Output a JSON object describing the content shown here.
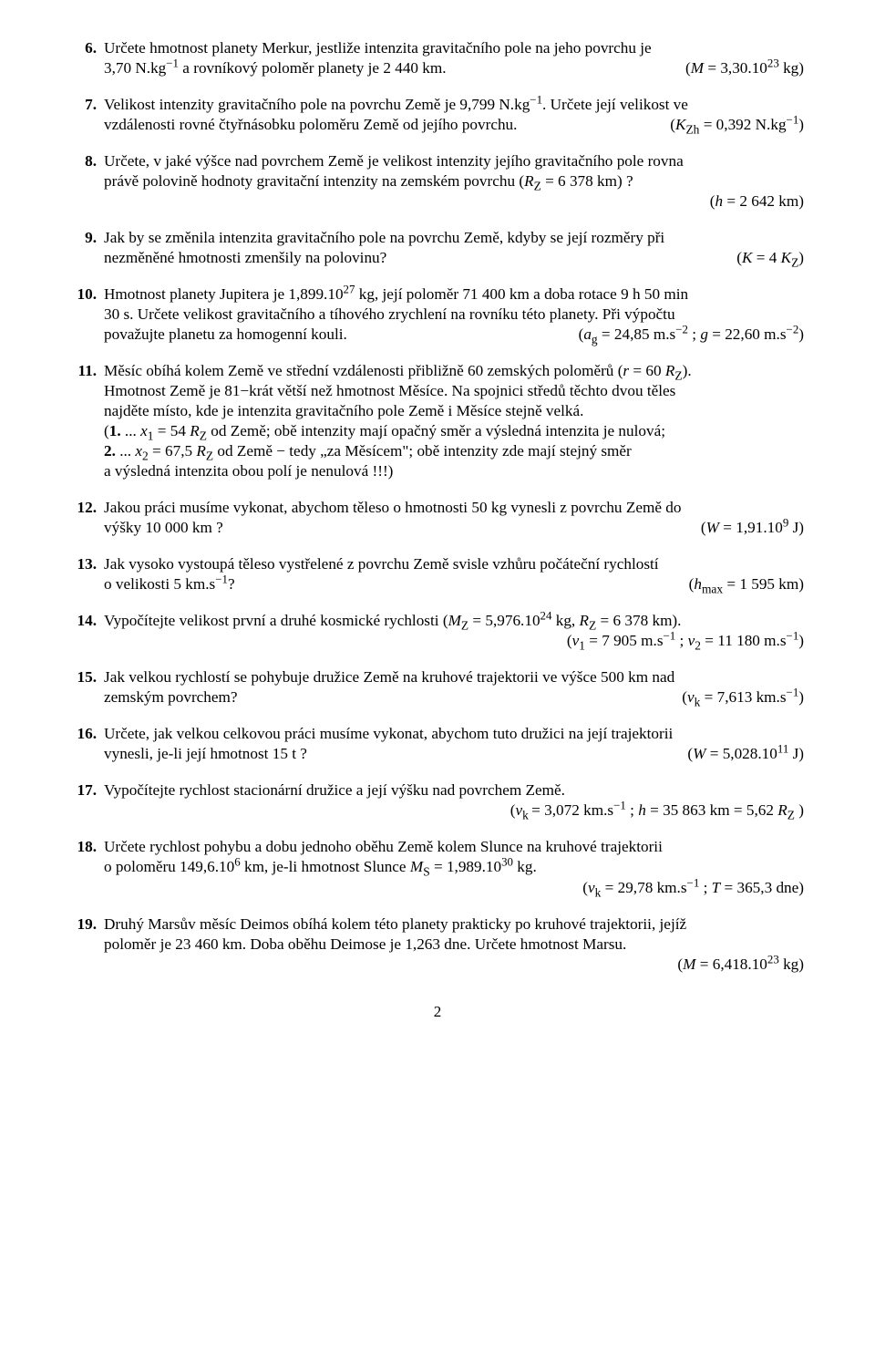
{
  "items": [
    {
      "n": "6.",
      "p1a": "Určete hmotnost planety Merkur, jestliže intenzita gravitačního pole na jeho povrchu je",
      "p1b_l": "3,70 N.kg",
      "p1b_exp": "−1",
      "p1b_r": " a rovníkový poloměr planety je 2 440 km.",
      "ans_l": "(",
      "ans_i": "M",
      "ans_m": " = 3,30.10",
      "ans_exp": "23",
      "ans_r": " kg)"
    },
    {
      "n": "7.",
      "p1a": "Velikost intenzity gravitačního pole na povrchu Země je 9,799 N.kg",
      "p1a_exp": "−1",
      "p1a_tail": ". Určete její velikost ve",
      "p2": "vzdálenosti rovné čtyřnásobku poloměru Země od jejího povrchu.",
      "ans_l": "(",
      "ans_i": "K",
      "ans_sub": "Zh",
      "ans_m": " = 0,392 N.kg",
      "ans_exp": "−1",
      "ans_r": ")"
    },
    {
      "n": "8.",
      "p1": "Určete, v jaké výšce nad povrchem Země je velikost intenzity jejího gravitačního pole rovna",
      "p2l": "právě polovině hodnoty gravitační intenzity na zemském povrchu (",
      "p2i": "R",
      "p2sub": "Z",
      "p2r": " = 6 378 km) ?",
      "ans_l": "(",
      "ans_i": "h",
      "ans_m": " = 2 642 km)"
    },
    {
      "n": "9.",
      "p1": "Jak by se změnila intenzita gravitačního pole na povrchu Země, kdyby se její rozměry při",
      "p2": "nezměněné hmotnosti zmenšily na polovinu?",
      "ans_l": "(",
      "ans_i": "K",
      "ans_m": " = 4 ",
      "ans_i2": "K",
      "ans_sub": "Z",
      "ans_r": ")"
    },
    {
      "n": "10.",
      "p1a": "Hmotnost planety Jupitera je 1,899.10",
      "p1exp": "27",
      "p1b": " kg, její poloměr 71 400 km a doba rotace 9 h 50 min",
      "p2": "30 s. Určete velikost gravitačního a tíhového zrychlení na rovníku této planety. Při výpočtu",
      "p3": "považujte planetu za homogenní kouli.",
      "ans": "(a",
      "ans_sub1": "g",
      "ans_m1": " = 24,85 m.s",
      "ans_e1": "−2",
      "ans_sep": " ; ",
      "ans_i2": "g",
      "ans_m2": " = 22,60 m.s",
      "ans_e2": "−2",
      "ans_r": ")"
    },
    {
      "n": "11.",
      "p1a": "Měsíc obíhá kolem Země ve střední vzdálenosti přibližně 60 zemských poloměrů (",
      "p1i": "r",
      "p1m": " = 60 ",
      "p1i2": "R",
      "p1sub": "Z",
      "p1r": ").",
      "p2": "Hmotnost Země je 81−krát větší než hmotnost Měsíce. Na spojnici středů těchto dvou těles",
      "p3": "najděte místo, kde je intenzita gravitačního pole Země i Měsíce stejně velká.",
      "s1a": "(",
      "s1b": "1.",
      "s1c": " ... ",
      "s1i": "x",
      "s1sub": "1",
      "s1m": " = 54 ",
      "s1i2": "R",
      "s1sub2": "Z",
      "s1r": "  od Země; obě intenzity mají opačný směr a výsledná intenzita je nulová;",
      "s2b": " 2.",
      "s2c": "  ...  ",
      "s2i": "x",
      "s2sub": "2",
      "s2m": " = 67,5 ",
      "s2i2": "R",
      "s2sub2": "Z",
      "s2r": "  od Země − tedy „za Měsícem\"; obě intenzity zde mají stejný směr",
      "s3": "a výsledná intenzita obou polí je nenulová !!!)"
    },
    {
      "n": "12.",
      "p1": "Jakou práci musíme vykonat, abychom těleso o hmotnosti 50 kg vynesli z povrchu Země do",
      "p2": "výšky 10 000 km ?",
      "ans_l": "(",
      "ans_i": "W",
      "ans_m": " = 1,91.10",
      "ans_exp": "9",
      "ans_r": " J)"
    },
    {
      "n": "13.",
      "p1": "Jak vysoko vystoupá těleso vystřelené z povrchu Země svisle vzhůru počáteční rychlostí",
      "p2a": "o velikosti 5 km.s",
      "p2exp": "−1",
      "p2b": "?",
      "ans_l": "(",
      "ans_i": "h",
      "ans_sub": "max",
      "ans_m": " = 1 595 km)"
    },
    {
      "n": "14.",
      "p1a": "Vypočítejte velikost první a druhé kosmické rychlosti (",
      "p1i": "M",
      "p1sub": "Z",
      "p1m": " = 5,976.10",
      "p1exp": "24",
      "p1b": " kg, ",
      "p1i2": "R",
      "p1sub2": "Z",
      "p1r": " = 6 378 km).",
      "ans_l": "(",
      "ans_i": "v",
      "ans_sub": "1",
      "ans_m": " = 7 905 m.s",
      "ans_e": "−1",
      "ans_sep": " ; ",
      "ans_i2": "v",
      "ans_sub2": "2",
      "ans_m2": " = 11 180 m.s",
      "ans_e2": "−1",
      "ans_r": ")"
    },
    {
      "n": "15.",
      "p1": "Jak velkou rychlostí se pohybuje družice Země na kruhové trajektorii ve výšce 500 km nad",
      "p2": "zemským povrchem?",
      "ans_l": "(",
      "ans_i": "v",
      "ans_sub": "k",
      "ans_m": " = 7,613 km.s",
      "ans_e": "−1",
      "ans_r": ")"
    },
    {
      "n": "16.",
      "p1": "Určete, jak velkou celkovou práci musíme vykonat, abychom tuto družici na její trajektorii",
      "p2": "vynesli, je-li její hmotnost 15 t ?",
      "ans_l": "(",
      "ans_i": "W",
      "ans_m": " = 5,028.10",
      "ans_exp": "11",
      "ans_r": " J)"
    },
    {
      "n": "17.",
      "p1": "Vypočítejte rychlost stacionární družice a její výšku nad povrchem Země.",
      "ans_l": "(",
      "ans_i": "v",
      "ans_sub": "k ",
      "ans_m": " = 3,072 km.s",
      "ans_e": "−1",
      "ans_sep": " ; ",
      "ans_i2": "h",
      "ans_m2": " = 35 863 km = 5,62 ",
      "ans_i3": "R",
      "ans_sub2": "Z",
      "ans_r": " )"
    },
    {
      "n": "18.",
      "p1": "Určete rychlost pohybu a dobu jednoho oběhu Země kolem Slunce na kruhové trajektorii",
      "p2a": "o poloměru 149,6.10",
      "p2e": "6",
      "p2b": " km, je-li hmotnost Slunce ",
      "p2i": "M",
      "p2sub": "S",
      "p2m": " = 1,989.10",
      "p2e2": "30",
      "p2r": " kg.",
      "ans_l": "(",
      "ans_i": "v",
      "ans_sub": "k",
      "ans_m": " = 29,78 km.s",
      "ans_e": "−1",
      "ans_sep": " ; ",
      "ans_i2": "T",
      "ans_m2": " = 365,3 dne)"
    },
    {
      "n": "19.",
      "p1": "Druhý Marsův měsíc Deimos obíhá kolem této planety prakticky po kruhové trajektorii, jejíž",
      "p2": "poloměr je  23 460 km.  Doba oběhu Deimose je 1,263 dne. Určete hmotnost Marsu.",
      "ans_l": "(",
      "ans_i": "M",
      "ans_m": " = 6,418.10",
      "ans_exp": "23",
      "ans_r": " kg)"
    }
  ],
  "pageno": "2"
}
